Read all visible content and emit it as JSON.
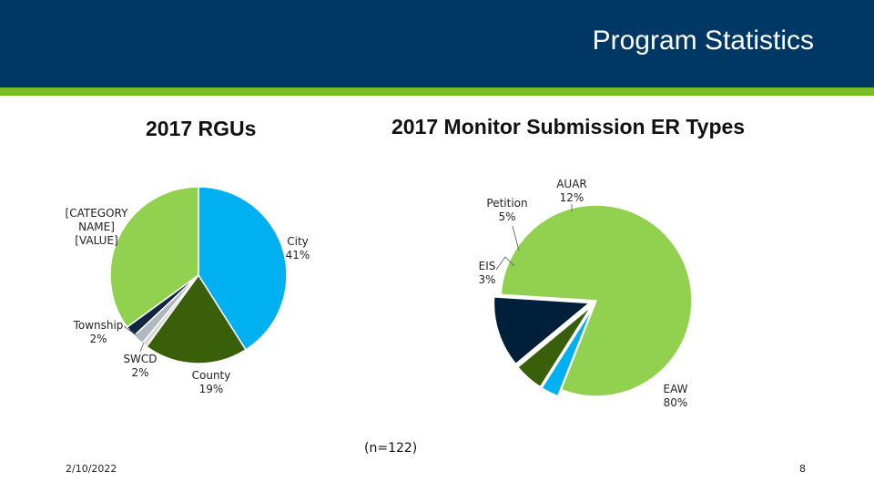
{
  "slide": {
    "title": "Program Statistics",
    "date": "2/10/2022",
    "page_number": "8",
    "note": "(n=122)"
  },
  "colors": {
    "header": "#003865",
    "accent": "#78be21"
  },
  "chart_data": [
    {
      "type": "pie",
      "title": "2017 RGUs",
      "slices": [
        {
          "name": "City",
          "value": 41,
          "label": "City\n41%",
          "color": "#00b0f0"
        },
        {
          "name": "County",
          "value": 19,
          "label": "County\n19%",
          "color": "#3a5f0b"
        },
        {
          "name": "",
          "value": 1,
          "label": "",
          "color": "#d9d9d9"
        },
        {
          "name": "SWCD",
          "value": 2,
          "label": "SWCD\n2%",
          "color": "#b0b7bf"
        },
        {
          "name": "Township",
          "value": 2,
          "label": "Township\n2%",
          "color": "#0f2540"
        },
        {
          "name": "[CATEGORY NAME]",
          "value": 35,
          "label": "[CATEGORY\nNAME]\n[VALUE]",
          "color": "#92d050"
        }
      ]
    },
    {
      "type": "pie",
      "title": "2017 Monitor Submission ER Types",
      "slices": [
        {
          "name": "EAW",
          "value": 80,
          "label": "EAW\n80%",
          "color": "#92d050",
          "exploded": false
        },
        {
          "name": "EIS",
          "value": 3,
          "label": "EIS\n3%",
          "color": "#00b0f0",
          "exploded": true
        },
        {
          "name": "Petition",
          "value": 5,
          "label": "Petition\n5%",
          "color": "#3a5f0b",
          "exploded": true
        },
        {
          "name": "AUAR",
          "value": 12,
          "label": "AUAR\n12%",
          "color": "#001f3b",
          "exploded": true
        }
      ]
    }
  ]
}
